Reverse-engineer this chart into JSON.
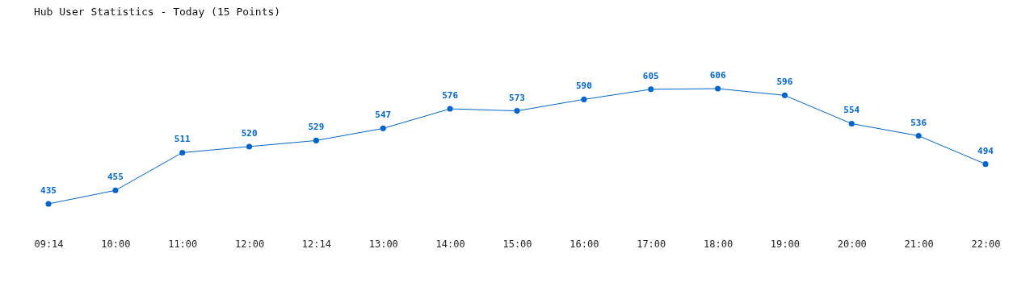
{
  "chart_data": {
    "type": "line",
    "title": "Hub User Statistics - Today (15 Points)",
    "categories": [
      "09:14",
      "10:00",
      "11:00",
      "12:00",
      "12:14",
      "13:00",
      "14:00",
      "15:00",
      "16:00",
      "17:00",
      "18:00",
      "19:00",
      "20:00",
      "21:00",
      "22:00"
    ],
    "series": [
      {
        "color": "#0066cc",
        "values": [
          435,
          455,
          511,
          520,
          529,
          547,
          576,
          573,
          590,
          605,
          606,
          596,
          554,
          536,
          494
        ]
      }
    ],
    "data_labels": true,
    "marker": "circle",
    "line_style": "solid",
    "grid": false,
    "legend": false
  }
}
